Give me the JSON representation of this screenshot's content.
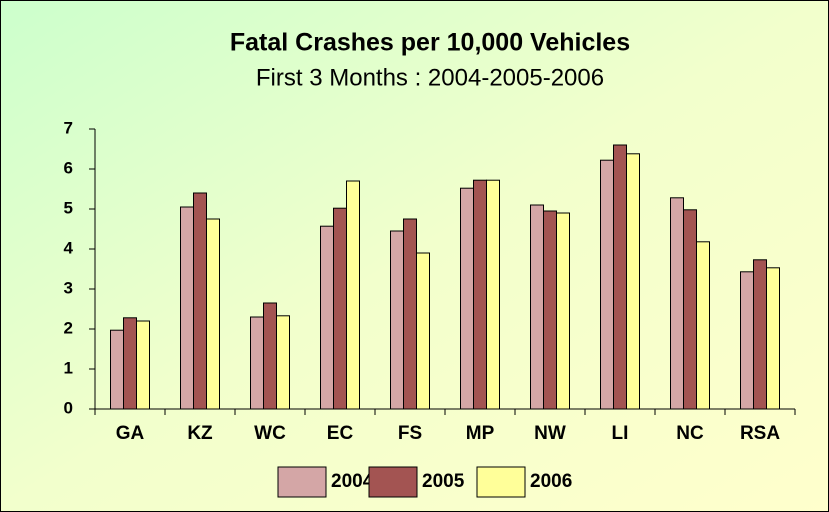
{
  "chart_data": {
    "type": "bar",
    "title": "Fatal Crashes per 10,000 Vehicles",
    "subtitle": "First 3 Months : 2004-2005-2006",
    "categories": [
      "GA",
      "KZ",
      "WC",
      "EC",
      "FS",
      "MP",
      "NW",
      "LI",
      "NC",
      "RSA"
    ],
    "series": [
      {
        "name": "2004",
        "color": "#d4a6a6",
        "values": [
          1.97,
          5.05,
          2.3,
          4.57,
          4.45,
          5.52,
          5.1,
          6.22,
          5.28,
          3.43
        ]
      },
      {
        "name": "2005",
        "color": "#a35452",
        "values": [
          2.28,
          5.4,
          2.65,
          5.02,
          4.75,
          5.72,
          4.95,
          6.6,
          4.98,
          3.73
        ]
      },
      {
        "name": "2006",
        "color": "#ffff99",
        "values": [
          2.2,
          4.75,
          2.33,
          5.7,
          3.9,
          5.72,
          4.9,
          6.38,
          4.18,
          3.53
        ]
      }
    ],
    "ylim": [
      0,
      7
    ],
    "yticks": [
      0,
      1,
      2,
      3,
      4,
      5,
      6,
      7
    ],
    "legend": "bottom"
  }
}
